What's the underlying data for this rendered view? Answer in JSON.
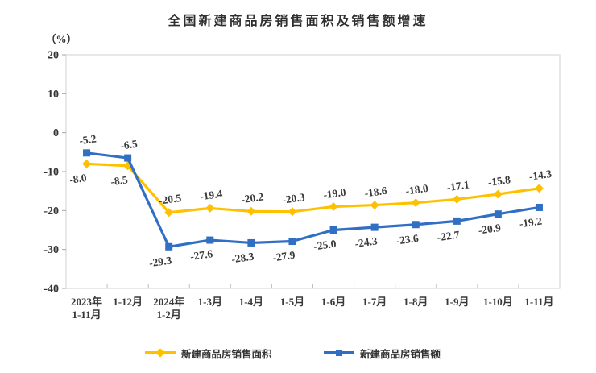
{
  "title": "全国新建商品房销售面积及销售额增速",
  "y_axis_unit": "（%）",
  "legend": {
    "area_label": "新建商品房销售面积",
    "amount_label": "新建商品房销售额"
  },
  "colors": {
    "area": "#FFC000",
    "amount": "#316FC4",
    "plot_border": "#D9D9D9",
    "tick": "#A6A6A6",
    "text": "#333333"
  },
  "chart_data": {
    "type": "line",
    "title": "全国新建商品房销售面积及销售额增速",
    "ylabel": "（%）",
    "xlabel": "",
    "ylim": [
      -40,
      20
    ],
    "y_ticks": [
      20,
      10,
      0,
      -10,
      -20,
      -30,
      -40
    ],
    "grid": false,
    "legend_position": "bottom",
    "categories": [
      "2023年\n1-11月",
      "1-12月",
      "2024年\n1-2月",
      "1-3月",
      "1-4月",
      "1-5月",
      "1-6月",
      "1-7月",
      "1-8月",
      "1-9月",
      "1-10月",
      "1-11月"
    ],
    "series": [
      {
        "name": "新建商品房销售面积",
        "color": "#FFC000",
        "marker": "diamond",
        "values": [
          -8.0,
          -8.5,
          -20.5,
          -19.4,
          -20.2,
          -20.3,
          -19.0,
          -18.6,
          -18.0,
          -17.1,
          -15.8,
          -14.3
        ],
        "label_sides": [
          "below",
          "below",
          "above",
          "above",
          "above",
          "above",
          "above",
          "above",
          "above",
          "above",
          "above",
          "above"
        ]
      },
      {
        "name": "新建商品房销售额",
        "color": "#316FC4",
        "marker": "square",
        "values": [
          -5.2,
          -6.5,
          -29.3,
          -27.6,
          -28.3,
          -27.9,
          -25.0,
          -24.3,
          -23.6,
          -22.7,
          -20.9,
          -19.2
        ],
        "label_sides": [
          "above",
          "above",
          "below",
          "below",
          "below",
          "below",
          "below",
          "below",
          "below",
          "below",
          "below",
          "below"
        ]
      }
    ]
  }
}
